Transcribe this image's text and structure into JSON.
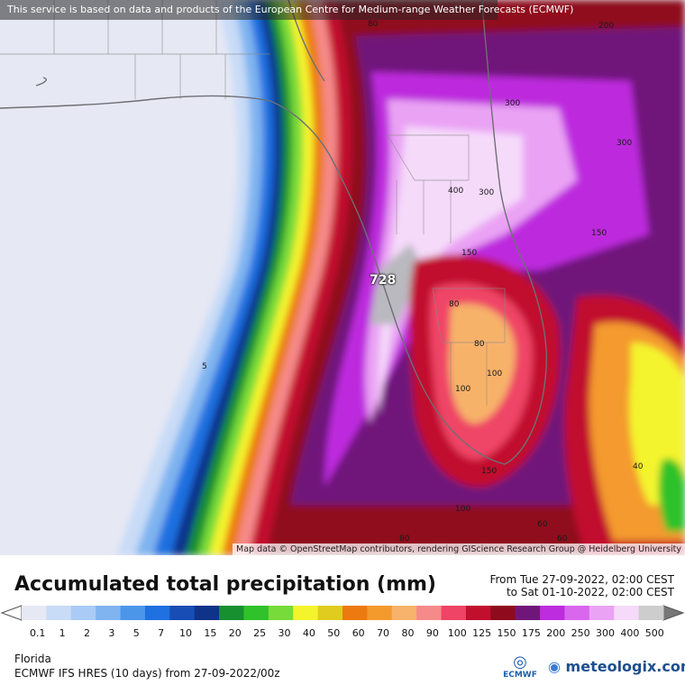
{
  "map": {
    "disclaimer": "This service is based on data and products of the European Centre for Medium-range Weather Forecasts (ECMWF)",
    "attribution": "Map data © OpenStreetMap contributors, rendering GIScience Research Group @ Heidelberg University",
    "max_value": "728",
    "contour_labels": [
      {
        "text": "80"
      },
      {
        "text": "200"
      },
      {
        "text": "300"
      },
      {
        "text": "300"
      },
      {
        "text": "400"
      },
      {
        "text": "300"
      },
      {
        "text": "150"
      },
      {
        "text": "150"
      },
      {
        "text": "80"
      },
      {
        "text": "80"
      },
      {
        "text": "100"
      },
      {
        "text": "100"
      },
      {
        "text": "5"
      },
      {
        "text": "40"
      },
      {
        "text": "150"
      },
      {
        "text": "100"
      },
      {
        "text": "80"
      },
      {
        "text": "60"
      },
      {
        "text": "60"
      }
    ]
  },
  "legend": {
    "title": "Accumulated total precipitation (mm)",
    "time_from": "From Tue 27-09-2022, 02:00 CEST",
    "time_to": "to Sat 01-10-2022, 02:00 CEST",
    "levels": [
      "0.1",
      "1",
      "2",
      "3",
      "5",
      "7",
      "10",
      "15",
      "20",
      "25",
      "30",
      "40",
      "50",
      "60",
      "70",
      "80",
      "90",
      "100",
      "125",
      "150",
      "175",
      "200",
      "250",
      "300",
      "400",
      "500"
    ],
    "colors": [
      "#e6e8f4",
      "#c8dbf7",
      "#a9cbf5",
      "#7fb4f0",
      "#4c96ea",
      "#1f70e0",
      "#174db5",
      "#10338a",
      "#17902f",
      "#2fc22a",
      "#77db3a",
      "#f4f42d",
      "#e0cc1e",
      "#ec7a10",
      "#f49a2d",
      "#f7b26b",
      "#f68a8a",
      "#ef4466",
      "#c1102e",
      "#8f0a1d",
      "#70167a",
      "#bd2cde",
      "#d867ee",
      "#eaa3f4",
      "#f5dafa",
      "#cdcdcd"
    ],
    "region": "Florida",
    "model": "ECMWF IFS HRES (10 days) from 27-09-2022/00z",
    "ecmwf_logo": "ECMWF",
    "brand": "meteologix.com"
  }
}
